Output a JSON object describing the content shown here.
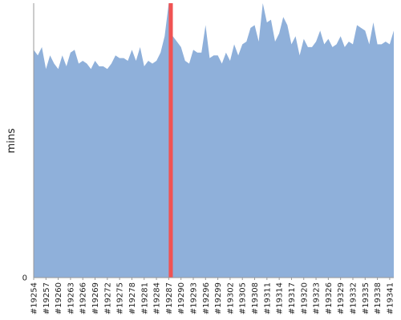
{
  "chart_data": {
    "type": "area",
    "ylabel": "mins",
    "y_tick_labels": [
      "0"
    ],
    "ylim": [
      0,
      100
    ],
    "grid": false,
    "legend": "none",
    "colors": {
      "area": "#8fb0da",
      "highlight": "#f05353",
      "axis": "#999999"
    },
    "x_tick_labels": [
      "#19254",
      "#19257",
      "#19260",
      "#19263",
      "#19266",
      "#19269",
      "#19272",
      "#19275",
      "#19278",
      "#19281",
      "#19284",
      "#19287",
      "#19290",
      "#19293",
      "#19296",
      "#19299",
      "#19302",
      "#19305",
      "#19308",
      "#19311",
      "#19314",
      "#19317",
      "#19320",
      "#19323",
      "#19326",
      "#19329",
      "#19332",
      "#19335",
      "#19338",
      "#19341"
    ],
    "x": [
      19254,
      19255,
      19256,
      19257,
      19258,
      19259,
      19260,
      19261,
      19262,
      19263,
      19264,
      19265,
      19266,
      19267,
      19268,
      19269,
      19270,
      19271,
      19272,
      19273,
      19274,
      19275,
      19276,
      19277,
      19278,
      19279,
      19280,
      19281,
      19282,
      19283,
      19284,
      19285,
      19286,
      19287,
      19288,
      19289,
      19290,
      19291,
      19292,
      19293,
      19294,
      19295,
      19296,
      19297,
      19298,
      19299,
      19300,
      19301,
      19302,
      19303,
      19304,
      19305,
      19306,
      19307,
      19308,
      19309,
      19310,
      19311,
      19312,
      19313,
      19314,
      19315,
      19316,
      19317,
      19318,
      19319,
      19320,
      19321,
      19322,
      19323,
      19324,
      19325,
      19326,
      19327,
      19328,
      19329,
      19330,
      19331,
      19332,
      19333,
      19334,
      19335,
      19336,
      19337,
      19338,
      19339,
      19340,
      19341,
      19342
    ],
    "values": [
      83,
      81,
      84,
      76,
      81,
      78,
      76,
      81,
      77,
      82,
      83,
      78,
      79,
      78,
      76,
      79,
      77,
      77,
      76,
      78,
      81,
      80,
      80,
      79,
      83,
      79,
      84,
      77,
      79,
      78,
      79,
      82,
      88,
      100,
      88,
      86,
      84,
      79,
      78,
      83,
      82,
      82,
      92,
      80,
      81,
      81,
      78,
      82,
      79,
      85,
      81,
      85,
      86,
      91,
      92,
      86,
      100,
      93,
      94,
      86,
      89,
      95,
      92,
      85,
      88,
      81,
      87,
      84,
      84,
      86,
      90,
      85,
      87,
      84,
      85,
      88,
      84,
      86,
      85,
      92,
      91,
      90,
      85,
      93,
      85,
      85,
      86,
      85,
      90
    ],
    "highlight": {
      "x_from": 19287,
      "x_to": 19288
    }
  }
}
